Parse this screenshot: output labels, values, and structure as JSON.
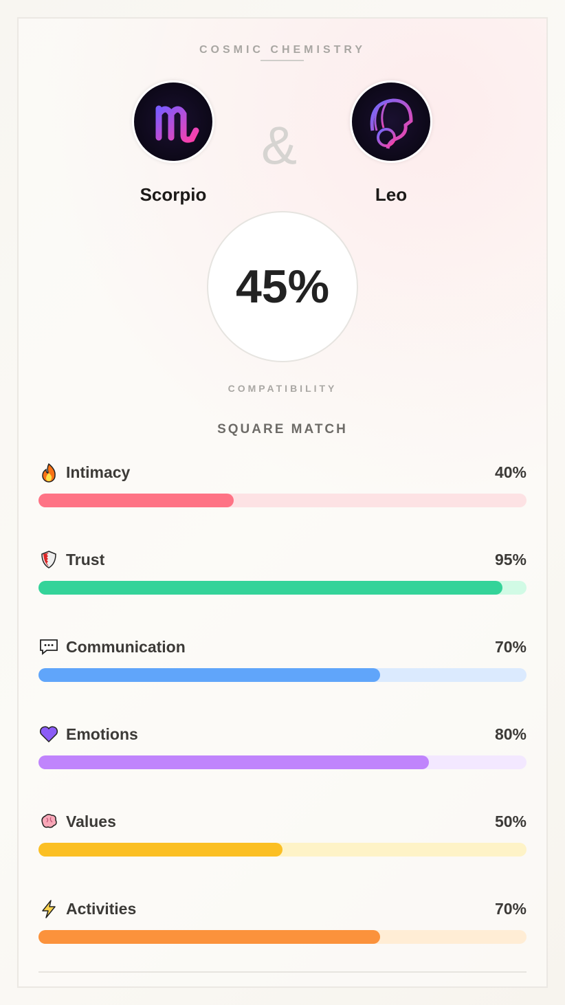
{
  "header": {
    "kicker": "COSMIC CHEMISTRY",
    "ampersand": "&"
  },
  "signs": [
    {
      "name": "Scorpio",
      "glyph": "♏"
    },
    {
      "name": "Leo",
      "glyph": "♌"
    }
  ],
  "score": {
    "value": "45%",
    "label": "COMPATIBILITY"
  },
  "section_title": "SQUARE MATCH",
  "metrics": [
    {
      "label": "Intimacy",
      "percent": "40%",
      "value": 40,
      "icon": "fire-icon",
      "color": "#fe7385",
      "track": "#fde2e4"
    },
    {
      "label": "Trust",
      "percent": "95%",
      "value": 95,
      "icon": "shield-icon",
      "color": "#34d399",
      "track": "#d1fae5"
    },
    {
      "label": "Communication",
      "percent": "70%",
      "value": 70,
      "icon": "speech-bubble-icon",
      "color": "#60a5fa",
      "track": "#dbeafe"
    },
    {
      "label": "Emotions",
      "percent": "80%",
      "value": 80,
      "icon": "purple-heart-icon",
      "color": "#c084fc",
      "track": "#f3e8ff"
    },
    {
      "label": "Values",
      "percent": "50%",
      "value": 50,
      "icon": "brain-icon",
      "color": "#fbbf24",
      "track": "#fef3c7"
    },
    {
      "label": "Activities",
      "percent": "70%",
      "value": 70,
      "icon": "lightning-icon",
      "color": "#fb923c",
      "track": "#ffedd5"
    }
  ]
}
